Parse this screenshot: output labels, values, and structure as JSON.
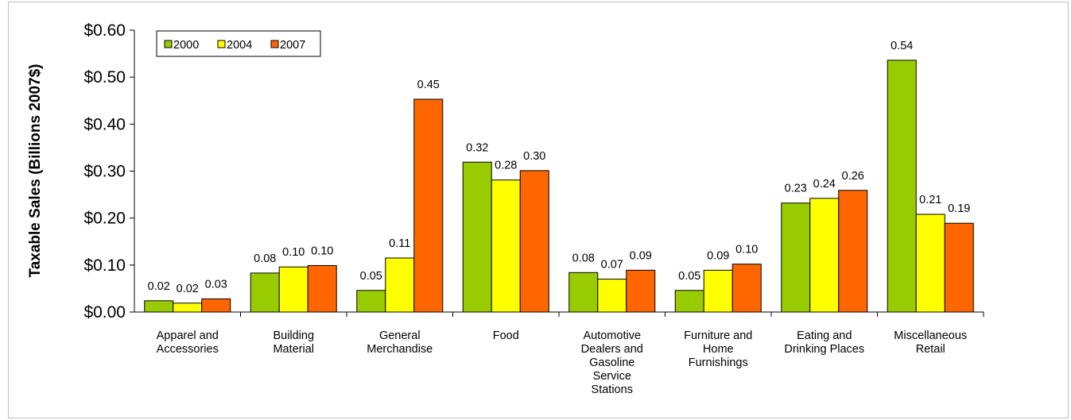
{
  "chart_data": {
    "type": "bar",
    "title": "",
    "xlabel": "",
    "ylabel": "Taxable Sales (Billions 2007$)",
    "ylim": [
      0,
      0.6
    ],
    "yticks": [
      "$0.00",
      "$0.10",
      "$0.20",
      "$0.30",
      "$0.40",
      "$0.50",
      "$0.60"
    ],
    "grid": false,
    "legend_position": "top-left",
    "categories": [
      [
        "Apparel and",
        "Accessories"
      ],
      [
        "Building",
        "Material"
      ],
      [
        "General",
        "Merchandise"
      ],
      [
        "Food"
      ],
      [
        "Automotive",
        "Dealers and",
        "Gasoline",
        "Service",
        "Stations"
      ],
      [
        "Furniture and",
        "Home",
        "Furnishings"
      ],
      [
        "Eating and",
        "Drinking Places"
      ],
      [
        "Miscellaneous",
        "Retail"
      ]
    ],
    "series": [
      {
        "name": "2000",
        "color": "#99cc00",
        "values": [
          0.024,
          0.083,
          0.046,
          0.319,
          0.084,
          0.046,
          0.232,
          0.536
        ],
        "labels": [
          "0.02",
          "0.08",
          "0.05",
          "0.32",
          "0.08",
          "0.05",
          "0.23",
          "0.54"
        ]
      },
      {
        "name": "2004",
        "color": "#ffff00",
        "values": [
          0.019,
          0.096,
          0.115,
          0.281,
          0.07,
          0.089,
          0.242,
          0.208
        ],
        "labels": [
          "0.02",
          "0.10",
          "0.11",
          "0.28",
          "0.07",
          "0.09",
          "0.24",
          "0.21"
        ]
      },
      {
        "name": "2007",
        "color": "#ff6600",
        "values": [
          0.028,
          0.099,
          0.453,
          0.301,
          0.089,
          0.102,
          0.259,
          0.189
        ],
        "labels": [
          "0.03",
          "0.10",
          "0.45",
          "0.30",
          "0.09",
          "0.10",
          "0.26",
          "0.19"
        ]
      }
    ]
  }
}
